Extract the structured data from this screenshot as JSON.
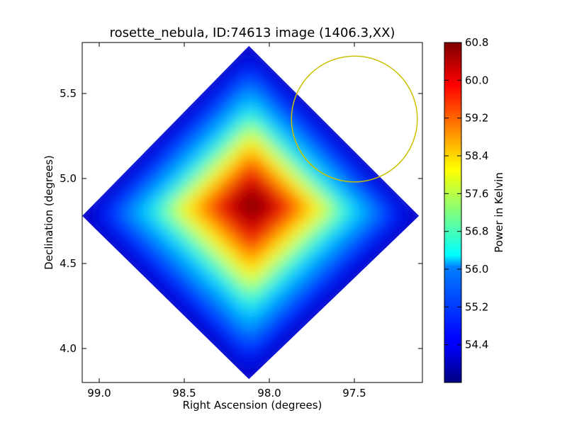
{
  "chart_data": {
    "type": "heatmap",
    "title": "rosette_nebula, ID:74613 image (1406.3,XX)",
    "xlabel": "Right Ascension (degrees)",
    "ylabel": "Declination (degrees)",
    "xlim": [
      99.1,
      97.1
    ],
    "ylim": [
      3.8,
      5.8
    ],
    "x_reversed": true,
    "xticks": [
      "99.0",
      "98.5",
      "98.0",
      "97.5"
    ],
    "yticks": [
      "4.0",
      "4.5",
      "5.0",
      "5.5"
    ],
    "colorbar": {
      "label": "Power in Kelvin",
      "colormap": "jet",
      "range": [
        53.6,
        60.8
      ],
      "ticks": [
        "54.4",
        "55.2",
        "56.0",
        "56.8",
        "57.6",
        "58.4",
        "59.2",
        "60.0",
        "60.8"
      ]
    },
    "map_footprint": {
      "shape": "diamond",
      "corners": [
        {
          "ra": 98.12,
          "dec": 5.78
        },
        {
          "ra": 97.12,
          "dec": 4.78
        },
        {
          "ra": 98.12,
          "dec": 3.82
        },
        {
          "ra": 99.1,
          "dec": 4.78
        }
      ]
    },
    "peak": {
      "ra": 98.1,
      "dec": 4.85,
      "value": 60.8
    },
    "overlay_circle": {
      "center": {
        "ra": 97.5,
        "dec": 5.35
      },
      "radius_deg": 0.37,
      "color": "#c8c000"
    },
    "grid": false
  }
}
